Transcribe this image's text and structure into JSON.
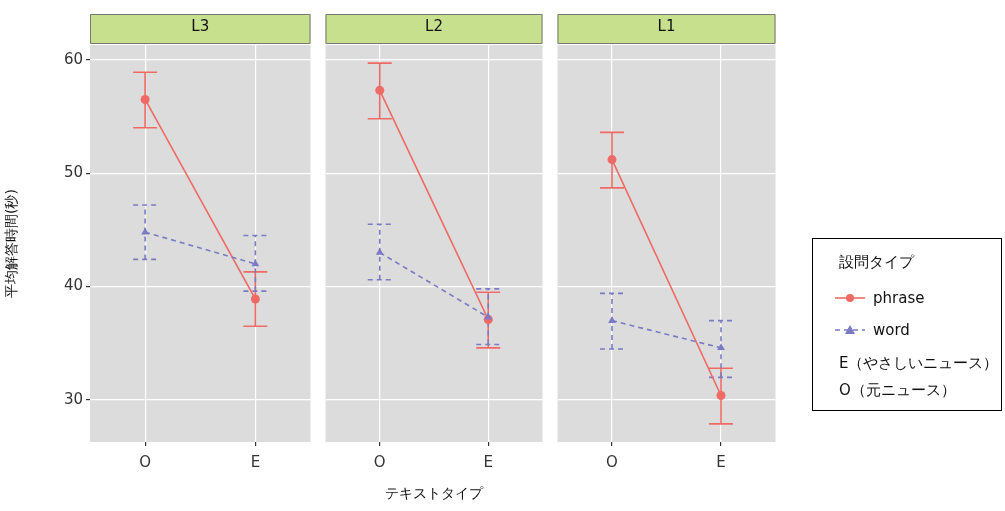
{
  "chart_data": [
    {
      "type": "line",
      "title": "L3",
      "ylabel": "平均解答時間(秒)",
      "legend": "right",
      "legend_title": "設問タイプ",
      "annotations": [
        "E（やさしいニュース）",
        "O（元ニュース）"
      ],
      "categories": [
        "O",
        "E"
      ],
      "ylim": [
        26.3,
        61.3
      ],
      "yticks": [
        30,
        40,
        50,
        60
      ],
      "grid": true,
      "series": [
        {
          "name": "phrase",
          "color": "#ef6a64",
          "values": [
            56.5,
            38.9
          ],
          "errors": [
            [
              54.0,
              58.9
            ],
            [
              36.5,
              41.3
            ]
          ],
          "marker": "circle",
          "line_style": "solid"
        },
        {
          "name": "word",
          "color": "#7b7bc4",
          "values": [
            44.8,
            42.0
          ],
          "errors": [
            [
              42.4,
              47.2
            ],
            [
              39.6,
              44.5
            ]
          ],
          "marker": "triangle",
          "line_style": "dashed"
        }
      ]
    },
    {
      "type": "line",
      "title": "L2",
      "xlabel": "テキストタイプ",
      "categories": [
        "O",
        "E"
      ],
      "ylim": [
        26.3,
        61.3
      ],
      "yticks": [
        30,
        40,
        50,
        60
      ],
      "grid": true,
      "tick_labels": "x",
      "series": [
        {
          "color": "#ef6a64",
          "values": [
            57.3,
            37.1
          ],
          "errors": [
            [
              54.8,
              59.7
            ],
            [
              34.6,
              39.5
            ]
          ],
          "marker": "circle",
          "line_style": "solid"
        },
        {
          "color": "#7b7bc4",
          "values": [
            43.0,
            37.3
          ],
          "errors": [
            [
              40.6,
              45.5
            ],
            [
              34.9,
              39.8
            ]
          ],
          "marker": "triangle",
          "line_style": "dashed"
        }
      ]
    },
    {
      "type": "line",
      "title": "L1",
      "categories": [
        "O",
        "E"
      ],
      "ylim": [
        26.3,
        61.3
      ],
      "yticks": [
        30,
        40,
        50,
        60
      ],
      "grid": true,
      "tick_labels": "x",
      "series": [
        {
          "color": "#ef6a64",
          "values": [
            51.2,
            30.4
          ],
          "errors": [
            [
              48.7,
              53.6
            ],
            [
              27.9,
              32.8
            ]
          ],
          "marker": "circle",
          "line_style": "solid"
        },
        {
          "color": "#7b7bc4",
          "values": [
            37.0,
            34.6
          ],
          "errors": [
            [
              34.5,
              39.4
            ],
            [
              32.0,
              37.0
            ]
          ],
          "marker": "triangle",
          "line_style": "dashed"
        }
      ]
    }
  ]
}
